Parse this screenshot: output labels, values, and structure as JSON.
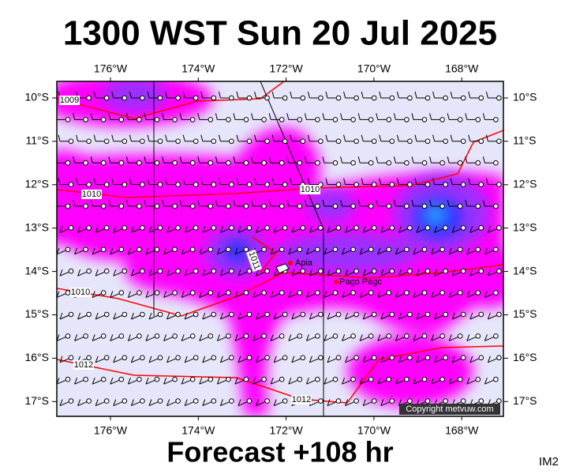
{
  "title": "1300 WST Sun 20 Jul 2025",
  "footer": "Forecast +108 hr",
  "image_id": "IM2",
  "copyright": "Copyright metvuw.com",
  "lon_labels": [
    "176°W",
    "174°W",
    "172°W",
    "170°W",
    "168°W"
  ],
  "lat_labels": [
    "10°S",
    "11°S",
    "12°S",
    "13°S",
    "14°S",
    "15°S",
    "16°S",
    "17°S"
  ],
  "places": [
    "Apia",
    "Pago Pago"
  ],
  "isobar_labels": [
    "1009",
    "1010",
    "1010",
    "1010",
    "1011",
    "1012",
    "1012"
  ]
}
